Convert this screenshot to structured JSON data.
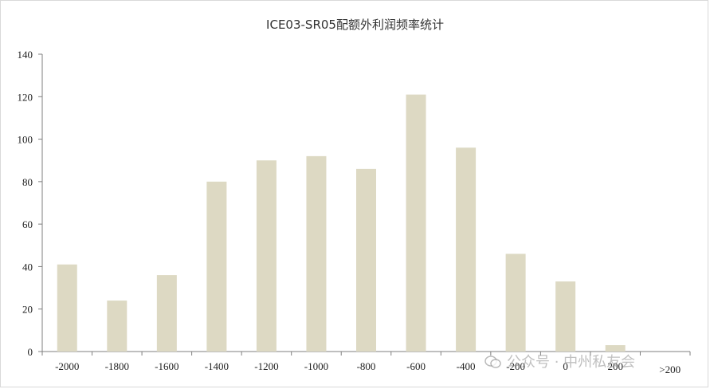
{
  "chart_data": {
    "type": "bar",
    "title": "ICE03-SR05配额外利润频率统计",
    "categories": [
      "-2000",
      "-1800",
      "-1600",
      "-1400",
      "-1200",
      "-1000",
      "-800",
      "-600",
      "-400",
      "-200",
      "0",
      "200",
      ">200"
    ],
    "values": [
      41,
      24,
      36,
      80,
      90,
      92,
      86,
      121,
      96,
      46,
      33,
      3,
      0
    ],
    "ylim": [
      0,
      140
    ],
    "yticks": [
      0,
      20,
      40,
      60,
      80,
      100,
      120,
      140
    ],
    "xlabel": "",
    "ylabel": "",
    "grid": false,
    "legend": "none",
    "bar_color": "#ddd9c3"
  },
  "watermark": {
    "text": "公众号 · 中州私友会",
    "icon": "wechat-icon"
  }
}
